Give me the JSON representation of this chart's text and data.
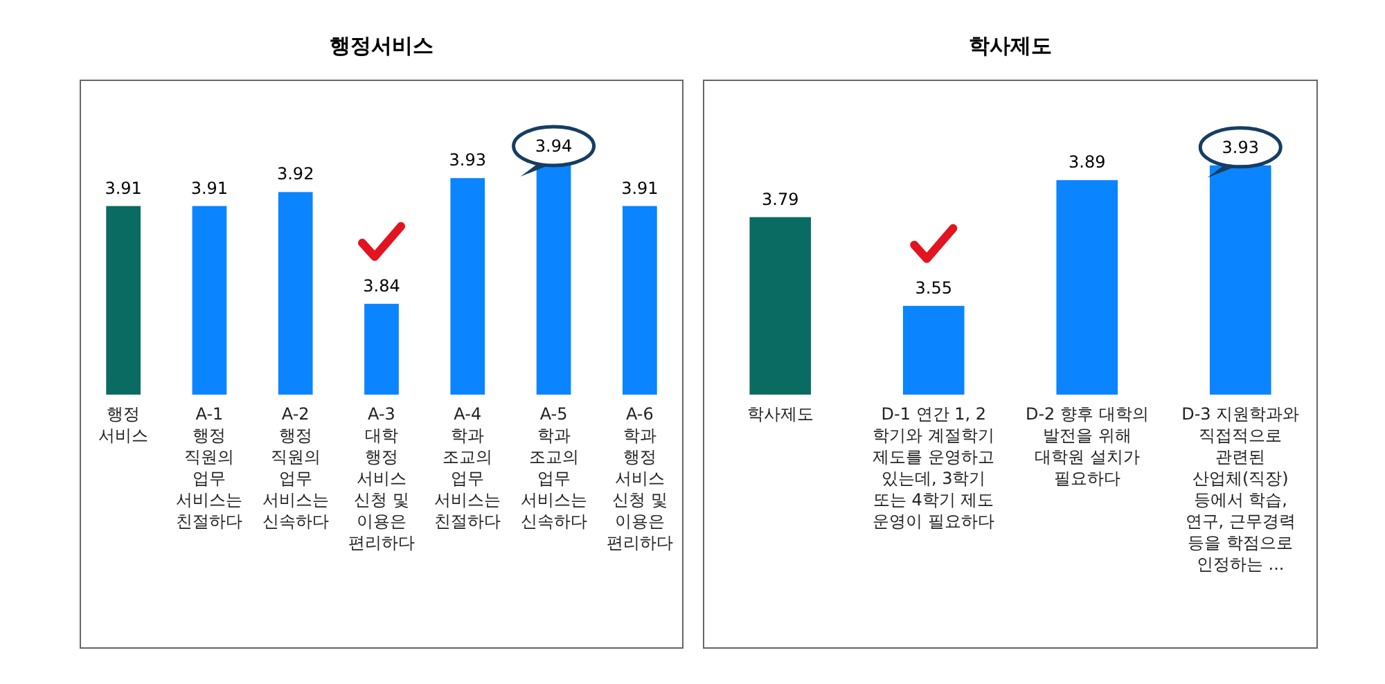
{
  "chart_data": [
    {
      "type": "bar",
      "title": "행정서비스",
      "categories": [
        "행정 서비스",
        "A-1 행정 직원의 업무 서비스는 친절하다",
        "A-2 행정 직원의 업무 서비스는 신속하다",
        "A-3 대학 행정 서비스 신청 및 이용은 편리하다",
        "A-4 학과 조교의 업무 서비스는 친절하다",
        "A-5 학과 조교의 업무 서비스는 신속하다",
        "A-6 학과 행정 서비스 신청 및 이용은 편리하다"
      ],
      "values": [
        3.91,
        3.91,
        3.92,
        3.84,
        3.93,
        3.94,
        3.91
      ],
      "colors": [
        "#0a6b62",
        "#0a84ff",
        "#0a84ff",
        "#0a84ff",
        "#0a84ff",
        "#0a84ff",
        "#0a84ff"
      ],
      "ylim": [
        3.775,
        4.0
      ],
      "data_labels": true,
      "tick_labels": "x"
    },
    {
      "type": "bar",
      "title": "학사제도",
      "categories": [
        "학사제도",
        "D-1 연간 1, 2 학기와 계절학기 제도를 운영하고 있는데, 3학기 또는 4학기 제도 운영이 필요하다",
        "D-2 향후 대학의 발전을 위해 대학원 설치가 필요하다",
        "D-3 지원학과와 직접적으로 관련된 산업체(직장) 등에서 학습, 연구, 근무경력 등을 학점으로 인정하는 ..."
      ],
      "values": [
        3.79,
        3.55,
        3.89,
        3.93
      ],
      "colors": [
        "#0a6b62",
        "#0a84ff",
        "#0a84ff",
        "#0a84ff"
      ],
      "ylim": [
        3.31,
        4.16
      ],
      "data_labels": true,
      "tick_labels": "x"
    }
  ]
}
